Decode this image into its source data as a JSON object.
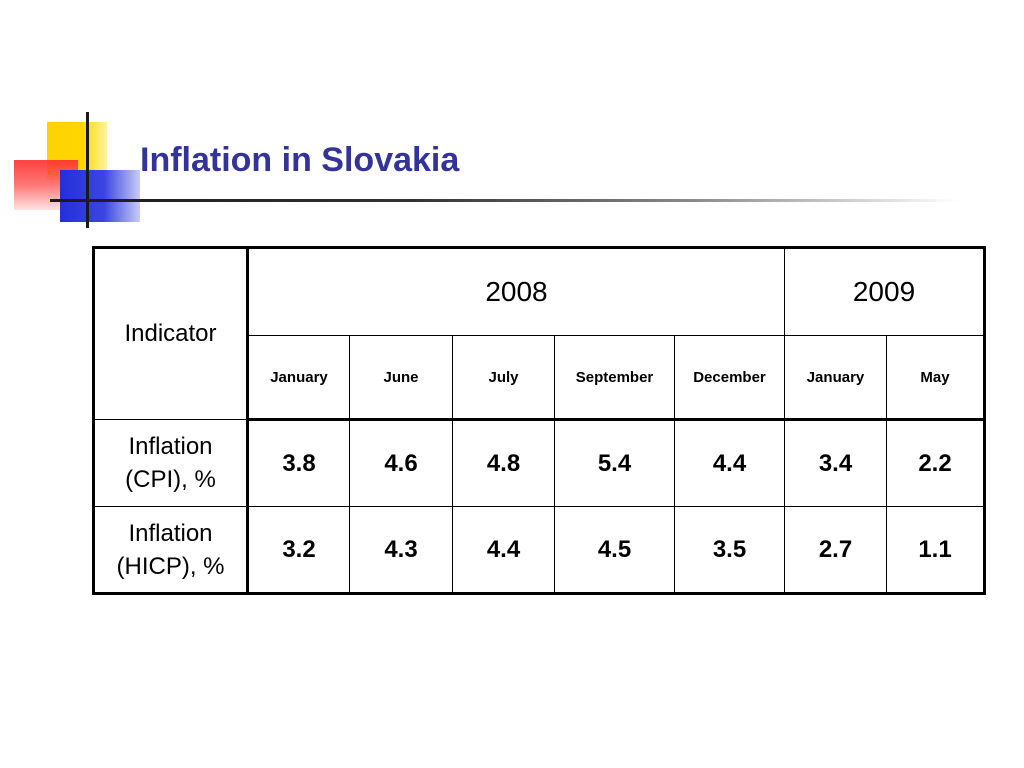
{
  "slide": {
    "title": "Inflation in Slovakia"
  },
  "colors": {
    "title": "#333399",
    "logo_yellow": "#ffd200",
    "logo_red": "#ff3030",
    "logo_blue": "#2430d8"
  },
  "table": {
    "indicator_header": "Indicator",
    "years": [
      {
        "label": "2008",
        "span": 5
      },
      {
        "label": "2009",
        "span": 2
      }
    ],
    "months": [
      "January",
      "June",
      "July",
      "September",
      "December",
      "January",
      "May"
    ],
    "rows": [
      {
        "label_line1": "Inflation",
        "label_line2": "(CPI), %",
        "values": [
          "3.8",
          "4.6",
          "4.8",
          "5.4",
          "4.4",
          "3.4",
          "2.2"
        ]
      },
      {
        "label_line1": "Inflation",
        "label_line2": "(HICP), %",
        "values": [
          "3.2",
          "4.3",
          "4.4",
          "4.5",
          "3.5",
          "2.7",
          "1.1"
        ]
      }
    ]
  }
}
